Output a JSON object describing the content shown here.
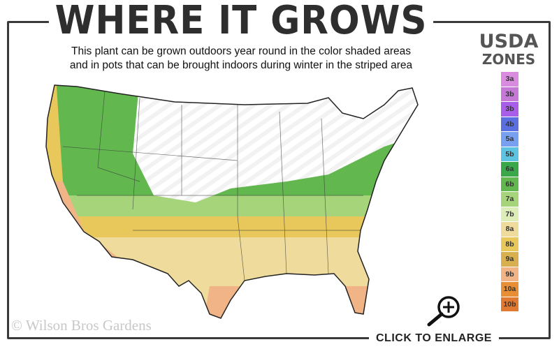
{
  "title": "WHERE IT GROWS",
  "subtitle_line1": "This plant can be grown outdoors year round in the color shaded areas",
  "subtitle_line2": "and in pots that can be brought indoors during winter in the striped area",
  "legend": {
    "title_line1": "USDA",
    "title_line2": "ZONES",
    "zones": [
      {
        "label": "3a",
        "color": "#d98be0"
      },
      {
        "label": "3b",
        "color": "#c479d6"
      },
      {
        "label": "3b",
        "color": "#a85ee8"
      },
      {
        "label": "4b",
        "color": "#5a6fe0"
      },
      {
        "label": "5a",
        "color": "#78a0f0"
      },
      {
        "label": "5b",
        "color": "#5cc4e0"
      },
      {
        "label": "6a",
        "color": "#3aa84a"
      },
      {
        "label": "6b",
        "color": "#62b84e"
      },
      {
        "label": "7a",
        "color": "#a6d47a"
      },
      {
        "label": "7b",
        "color": "#dcedb8"
      },
      {
        "label": "8a",
        "color": "#efdc9c"
      },
      {
        "label": "8b",
        "color": "#e8c85a"
      },
      {
        "label": "9a",
        "color": "#d9b050"
      },
      {
        "label": "9b",
        "color": "#f0b486"
      },
      {
        "label": "10a",
        "color": "#e88e34"
      },
      {
        "label": "10b",
        "color": "#e07a32"
      }
    ]
  },
  "copyright": "© Wilson Bros Gardens",
  "enlarge_label": "CLICK TO ENLARGE",
  "icons": {
    "enlarge": "zoom-in-magnifier-icon"
  }
}
